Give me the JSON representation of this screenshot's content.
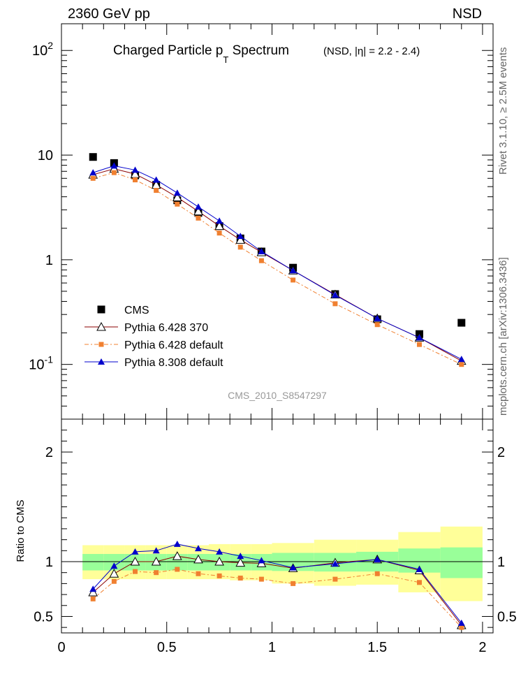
{
  "header": {
    "left": "2360 GeV pp",
    "right": "NSD",
    "title_main": "Charged Particle p",
    "title_sub": "T",
    "title_tail": " Spectrum",
    "title_note": "(NSD, |η| = 2.2 - 2.4)",
    "side_rivet": "Rivet 3.1.10, ≥ 2.5M events",
    "side_mcplots": "mcplots.cern.ch [arXiv:1306.3436]",
    "watermark": "CMS_2010_S8547297"
  },
  "colors": {
    "cms": "#000000",
    "p6_370": "#8b0000",
    "p6_default": "#f08030",
    "p8": "#0000cc",
    "band_inner": "#99ff99",
    "band_outer": "#ffff99"
  },
  "chart_data": [
    {
      "type": "scatter",
      "panel": "main",
      "yscale": "log",
      "xlim": [
        0,
        2.05
      ],
      "ylim": [
        0.03,
        180
      ],
      "ytick_labels": [
        "10^-1",
        "1",
        "10",
        "10^2"
      ],
      "legend": {
        "position": "lower-left",
        "entries": [
          "CMS",
          "Pythia 6.428 370",
          "Pythia 6.428 default",
          "Pythia 8.308 default"
        ]
      },
      "x": [
        0.15,
        0.25,
        0.35,
        0.45,
        0.55,
        0.65,
        0.75,
        0.85,
        0.95,
        1.1,
        1.3,
        1.5,
        1.7,
        1.9
      ],
      "series": [
        {
          "name": "CMS",
          "marker": "square",
          "values": [
            9.6,
            8.4,
            6.4,
            5.2,
            3.7,
            2.8,
            2.1,
            1.6,
            1.2,
            0.84,
            0.47,
            0.27,
            0.195,
            0.25
          ]
        },
        {
          "name": "Pythia 6.428 370",
          "marker": "open-triangle",
          "values": [
            6.5,
            7.4,
            6.6,
            5.2,
            3.95,
            2.9,
            2.1,
            1.55,
            1.18,
            0.79,
            0.465,
            0.275,
            0.18,
            0.108
          ]
        },
        {
          "name": "Pythia 6.428 default",
          "marker": "small-square",
          "values": [
            6.0,
            6.8,
            5.8,
            4.6,
            3.4,
            2.5,
            1.8,
            1.32,
            0.98,
            0.64,
            0.38,
            0.24,
            0.155,
            0.1
          ]
        },
        {
          "name": "Pythia 8.308 default",
          "marker": "filled-triangle",
          "values": [
            6.8,
            7.9,
            7.2,
            5.8,
            4.35,
            3.2,
            2.35,
            1.68,
            1.2,
            0.79,
            0.46,
            0.275,
            0.18,
            0.112
          ]
        }
      ]
    },
    {
      "type": "scatter",
      "panel": "ratio",
      "ylabel": "Ratio to CMS",
      "xlim": [
        0,
        2.05
      ],
      "ylim": [
        0.35,
        2.3
      ],
      "xtick_labels": [
        "0",
        "0.5",
        "1",
        "1.5",
        "2"
      ],
      "ytick_labels": [
        "0.5",
        "1",
        "2"
      ],
      "bins": [
        [
          0.1,
          0.2
        ],
        [
          0.2,
          0.3
        ],
        [
          0.3,
          0.4
        ],
        [
          0.4,
          0.5
        ],
        [
          0.5,
          0.6
        ],
        [
          0.6,
          0.7
        ],
        [
          0.7,
          0.8
        ],
        [
          0.8,
          0.9
        ],
        [
          0.9,
          1.0
        ],
        [
          1.0,
          1.2
        ],
        [
          1.2,
          1.4
        ],
        [
          1.4,
          1.6
        ],
        [
          1.6,
          1.8
        ],
        [
          1.8,
          2.0
        ]
      ],
      "band_inner": [
        [
          0.92,
          1.07
        ],
        [
          0.92,
          1.07
        ],
        [
          0.92,
          1.07
        ],
        [
          0.92,
          1.07
        ],
        [
          0.92,
          1.07
        ],
        [
          0.92,
          1.07
        ],
        [
          0.92,
          1.07
        ],
        [
          0.92,
          1.07
        ],
        [
          0.92,
          1.07
        ],
        [
          0.915,
          1.08
        ],
        [
          0.91,
          1.08
        ],
        [
          0.91,
          1.09
        ],
        [
          0.9,
          1.12
        ],
        [
          0.85,
          1.13
        ]
      ],
      "band_outer": [
        [
          0.84,
          1.15
        ],
        [
          0.84,
          1.15
        ],
        [
          0.84,
          1.15
        ],
        [
          0.84,
          1.15
        ],
        [
          0.84,
          1.15
        ],
        [
          0.84,
          1.15
        ],
        [
          0.84,
          1.16
        ],
        [
          0.83,
          1.16
        ],
        [
          0.83,
          1.16
        ],
        [
          0.8,
          1.17
        ],
        [
          0.78,
          1.2
        ],
        [
          0.79,
          1.2
        ],
        [
          0.72,
          1.27
        ],
        [
          0.64,
          1.32
        ]
      ],
      "x": [
        0.15,
        0.25,
        0.35,
        0.45,
        0.55,
        0.65,
        0.75,
        0.85,
        0.95,
        1.1,
        1.3,
        1.5,
        1.7,
        1.9
      ],
      "series": [
        {
          "name": "Pythia 6.428 370",
          "values": [
            0.72,
            0.89,
            1.0,
            1.0,
            1.05,
            1.02,
            1.0,
            0.99,
            0.985,
            0.94,
            0.99,
            1.02,
            0.92,
            0.42
          ]
        },
        {
          "name": "Pythia 6.428 default",
          "values": [
            0.66,
            0.82,
            0.91,
            0.9,
            0.93,
            0.89,
            0.87,
            0.85,
            0.84,
            0.8,
            0.84,
            0.89,
            0.81,
            0.4
          ]
        },
        {
          "name": "Pythia 8.308 default",
          "values": [
            0.75,
            0.96,
            1.09,
            1.1,
            1.16,
            1.12,
            1.09,
            1.05,
            1.01,
            0.945,
            0.98,
            1.02,
            0.93,
            0.44
          ]
        }
      ]
    }
  ]
}
